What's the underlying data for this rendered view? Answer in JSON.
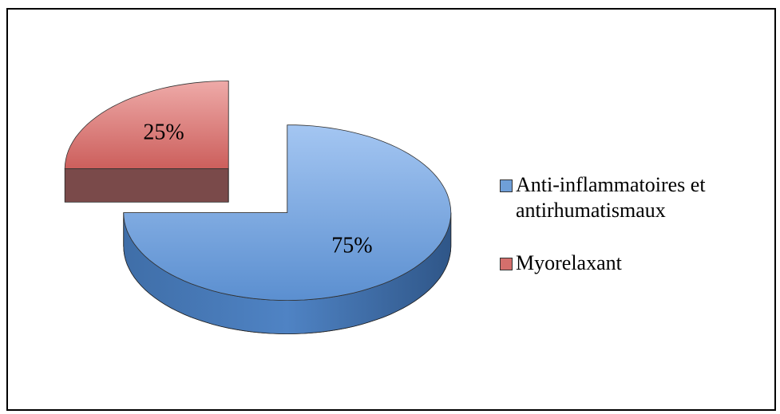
{
  "chart_data": {
    "type": "pie",
    "categories": [
      "Anti-inflammatoires et antirhumatismaux",
      "Myorelaxant"
    ],
    "values": [
      75,
      25
    ],
    "value_labels": [
      "75%",
      "25%"
    ],
    "colors": [
      "#6f9fd8",
      "#d46f6c"
    ]
  }
}
